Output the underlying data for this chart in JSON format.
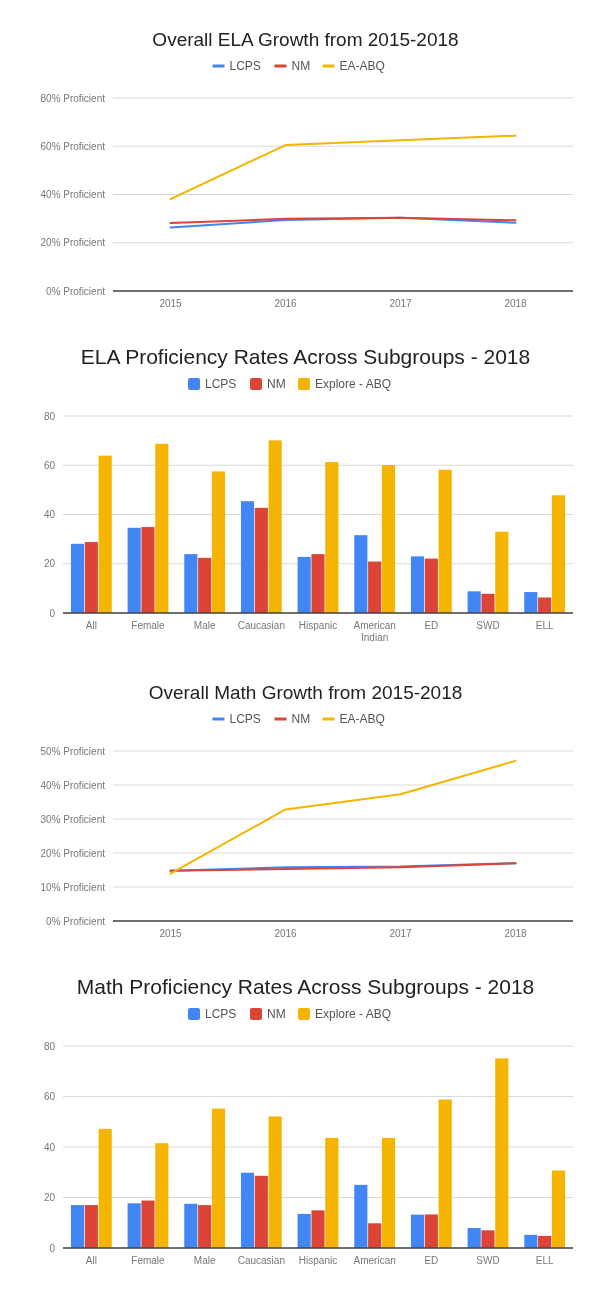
{
  "chart_data": [
    {
      "type": "line",
      "title": "Overall ELA Growth from 2015-2018",
      "categories": [
        "2015",
        "2016",
        "2017",
        "2018"
      ],
      "series": [
        {
          "name": "LCPS",
          "color": "#4285f4",
          "values": [
            26.3,
            29.4,
            30.4,
            28.3
          ]
        },
        {
          "name": "NM",
          "color": "#db4437",
          "values": [
            28.2,
            29.9,
            30.4,
            29.3
          ]
        },
        {
          "name": "EA-ABQ",
          "color": "#f4b400",
          "values": [
            38.1,
            60.5,
            62.5,
            64.4
          ]
        }
      ],
      "ylim": [
        0,
        80
      ],
      "yticks": [
        {
          "value": 0,
          "label": "0% Proficient"
        },
        {
          "value": 20,
          "label": "20% Proficient"
        },
        {
          "value": 40,
          "label": "40% Proficient"
        },
        {
          "value": 60,
          "label": "60% Proficient"
        },
        {
          "value": 80,
          "label": "80% Proficient"
        }
      ],
      "grid": "y",
      "legend": "top",
      "marker": "none"
    },
    {
      "type": "bar",
      "title": "ELA Proficiency Rates Across Subgroups - 2018",
      "categories": [
        "All",
        "Female",
        "Male",
        "Caucasian",
        "Hispanic",
        "American Indian",
        "ED",
        "SWD",
        "ELL"
      ],
      "series": [
        {
          "name": "LCPS",
          "color": "#4285f4",
          "values": [
            28.1,
            34.6,
            23.9,
            45.4,
            22.8,
            31.6,
            23.0,
            8.8,
            8.5
          ]
        },
        {
          "name": "NM",
          "color": "#db4437",
          "values": [
            28.8,
            34.9,
            22.4,
            42.7,
            23.9,
            20.9,
            22.1,
            7.8,
            6.3
          ]
        },
        {
          "name": "Explore - ABQ",
          "color": "#f4b400",
          "values": [
            63.9,
            68.7,
            57.5,
            70.1,
            61.3,
            60.1,
            58.2,
            33.0,
            47.8
          ]
        }
      ],
      "ylim": [
        0,
        80
      ],
      "yticks": [
        0,
        20,
        40,
        60,
        80
      ],
      "grid": "y",
      "legend": "top"
    },
    {
      "type": "line",
      "title": "Overall Math Growth from 2015-2018",
      "categories": [
        "2015",
        "2016",
        "2017",
        "2018"
      ],
      "series": [
        {
          "name": "LCPS",
          "color": "#4285f4",
          "values": [
            14.8,
            15.8,
            16.0,
            17.0
          ]
        },
        {
          "name": "NM",
          "color": "#db4437",
          "values": [
            14.8,
            15.3,
            15.8,
            17.0
          ]
        },
        {
          "name": "EA-ABQ",
          "color": "#f4b400",
          "values": [
            13.9,
            32.8,
            37.3,
            47.1
          ]
        }
      ],
      "ylim": [
        0,
        50
      ],
      "yticks": [
        {
          "value": 0,
          "label": "0% Proficient"
        },
        {
          "value": 10,
          "label": "10% Proficient"
        },
        {
          "value": 20,
          "label": "20% Proficient"
        },
        {
          "value": 30,
          "label": "30% Proficient"
        },
        {
          "value": 40,
          "label": "40% Proficient"
        },
        {
          "value": 50,
          "label": "50% Proficient"
        }
      ],
      "grid": "y",
      "legend": "top",
      "marker": "none"
    },
    {
      "type": "bar",
      "title": "Math Proficiency Rates Across Subgroups - 2018",
      "categories": [
        "All",
        "Female",
        "Male",
        "Caucasian",
        "Hispanic",
        "American",
        "ED",
        "SWD",
        "ELL"
      ],
      "series": [
        {
          "name": "LCPS",
          "color": "#4285f4",
          "values": [
            17.0,
            17.7,
            17.5,
            29.8,
            13.5,
            25.0,
            13.2,
            7.9,
            5.2
          ]
        },
        {
          "name": "NM",
          "color": "#db4437",
          "values": [
            17.0,
            18.8,
            17.0,
            28.6,
            14.9,
            9.8,
            13.3,
            7.0,
            4.8
          ]
        },
        {
          "name": "Explore - ABQ",
          "color": "#f4b400",
          "values": [
            47.2,
            41.5,
            55.2,
            52.1,
            43.6,
            43.6,
            58.8,
            75.1,
            30.7
          ]
        }
      ],
      "ylim": [
        0,
        80
      ],
      "yticks": [
        0,
        20,
        40,
        60,
        80
      ],
      "grid": "y",
      "legend": "top"
    }
  ]
}
